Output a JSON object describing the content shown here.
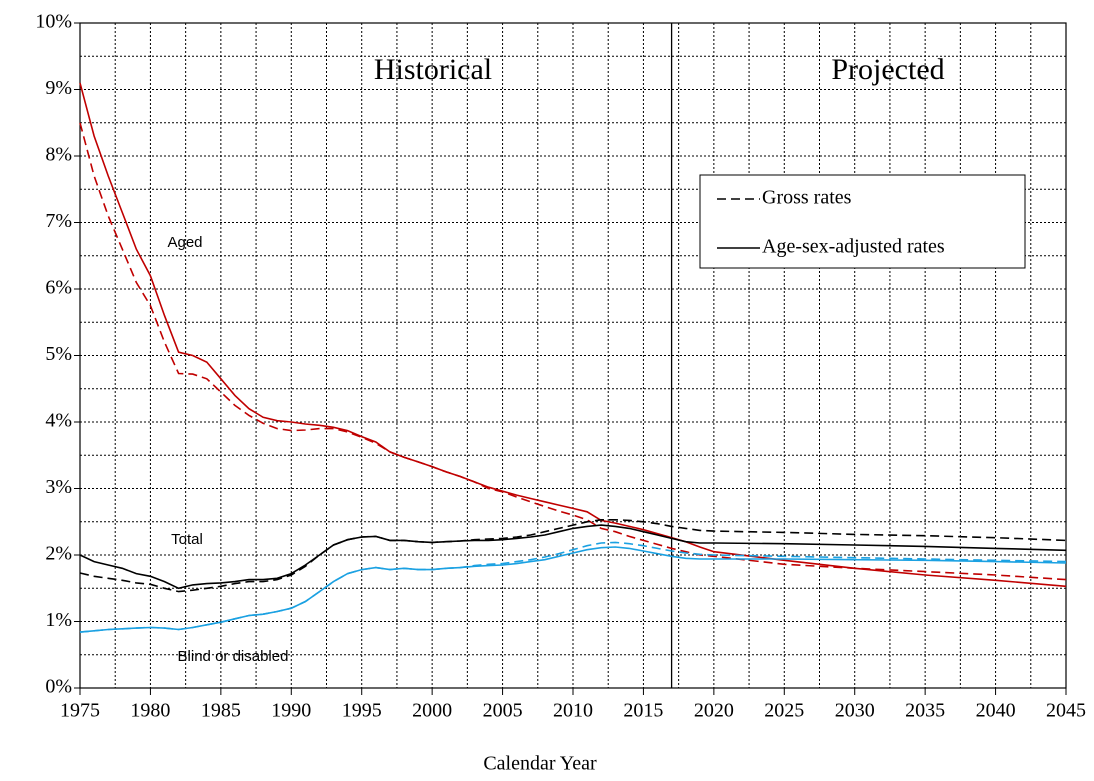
{
  "chart_data": {
    "type": "line",
    "x_label": "Calendar Year",
    "annotations": [
      "Historical",
      "Projected"
    ],
    "divider_x": 2017,
    "x": [
      1975,
      1976,
      1977,
      1978,
      1979,
      1980,
      1981,
      1982,
      1983,
      1984,
      1985,
      1986,
      1987,
      1988,
      1989,
      1990,
      1991,
      1992,
      1993,
      1994,
      1995,
      1996,
      1997,
      1998,
      1999,
      2000,
      2001,
      2002,
      2003,
      2004,
      2005,
      2006,
      2007,
      2008,
      2009,
      2010,
      2011,
      2012,
      2013,
      2014,
      2015,
      2016,
      2017,
      2018,
      2019,
      2020,
      2025,
      2030,
      2035,
      2040,
      2045
    ],
    "series": [
      {
        "name": "Aged",
        "dashed": false,
        "color": "#c00000",
        "values": [
          9.1,
          8.3,
          7.7,
          7.15,
          6.6,
          6.2,
          5.6,
          5.05,
          5.0,
          4.9,
          4.65,
          4.4,
          4.2,
          4.07,
          4.02,
          4.0,
          3.97,
          3.95,
          3.92,
          3.87,
          3.78,
          3.7,
          3.55,
          3.47,
          3.4,
          3.33,
          3.25,
          3.18,
          3.1,
          3.02,
          2.96,
          2.9,
          2.85,
          2.8,
          2.75,
          2.7,
          2.65,
          2.52,
          2.48,
          2.43,
          2.38,
          2.32,
          2.26,
          2.2,
          2.12,
          2.05,
          1.92,
          1.8,
          1.7,
          1.62,
          1.53
        ]
      },
      {
        "name": "Aged",
        "dashed": true,
        "color": "#c00000",
        "values": [
          8.5,
          7.7,
          7.1,
          6.6,
          6.1,
          5.75,
          5.2,
          4.73,
          4.72,
          4.65,
          4.45,
          4.25,
          4.1,
          3.98,
          3.9,
          3.87,
          3.88,
          3.9,
          3.9,
          3.85,
          3.77,
          3.68,
          3.55,
          3.47,
          3.4,
          3.33,
          3.25,
          3.18,
          3.1,
          3.0,
          2.95,
          2.87,
          2.8,
          2.73,
          2.66,
          2.6,
          2.53,
          2.4,
          2.35,
          2.28,
          2.22,
          2.16,
          2.1,
          2.05,
          2.0,
          1.98,
          1.86,
          1.8,
          1.75,
          1.7,
          1.63
        ]
      },
      {
        "name": "Total",
        "dashed": false,
        "color": "#000000",
        "values": [
          2.0,
          1.9,
          1.85,
          1.8,
          1.72,
          1.68,
          1.6,
          1.5,
          1.55,
          1.57,
          1.58,
          1.6,
          1.63,
          1.63,
          1.65,
          1.72,
          1.85,
          2.0,
          2.15,
          2.23,
          2.27,
          2.28,
          2.22,
          2.22,
          2.2,
          2.19,
          2.2,
          2.21,
          2.22,
          2.22,
          2.23,
          2.25,
          2.27,
          2.3,
          2.35,
          2.4,
          2.43,
          2.45,
          2.43,
          2.4,
          2.35,
          2.3,
          2.25,
          2.2,
          2.18,
          2.18,
          2.17,
          2.15,
          2.13,
          2.1,
          2.07
        ]
      },
      {
        "name": "Total",
        "dashed": true,
        "color": "#000000",
        "values": [
          1.73,
          1.68,
          1.65,
          1.62,
          1.58,
          1.56,
          1.5,
          1.45,
          1.47,
          1.5,
          1.53,
          1.57,
          1.6,
          1.6,
          1.63,
          1.7,
          1.83,
          2.0,
          2.15,
          2.23,
          2.27,
          2.28,
          2.22,
          2.22,
          2.2,
          2.19,
          2.2,
          2.21,
          2.23,
          2.24,
          2.25,
          2.27,
          2.3,
          2.35,
          2.4,
          2.45,
          2.5,
          2.53,
          2.53,
          2.52,
          2.5,
          2.47,
          2.43,
          2.4,
          2.37,
          2.36,
          2.34,
          2.31,
          2.29,
          2.26,
          2.22
        ]
      },
      {
        "name": "Blind or disabled",
        "dashed": false,
        "color": "#1ba1e2",
        "values": [
          0.84,
          0.86,
          0.88,
          0.89,
          0.9,
          0.91,
          0.9,
          0.88,
          0.91,
          0.95,
          0.99,
          1.04,
          1.09,
          1.11,
          1.15,
          1.2,
          1.3,
          1.45,
          1.6,
          1.72,
          1.78,
          1.81,
          1.78,
          1.8,
          1.78,
          1.78,
          1.8,
          1.81,
          1.83,
          1.84,
          1.85,
          1.87,
          1.9,
          1.93,
          1.98,
          2.03,
          2.08,
          2.11,
          2.12,
          2.1,
          2.06,
          2.02,
          1.98,
          1.95,
          1.94,
          1.94,
          1.94,
          1.93,
          1.92,
          1.9,
          1.88
        ]
      },
      {
        "name": "Blind or disabled",
        "dashed": true,
        "color": "#1ba1e2",
        "values": [
          0.84,
          0.86,
          0.88,
          0.89,
          0.9,
          0.91,
          0.9,
          0.88,
          0.91,
          0.95,
          0.99,
          1.04,
          1.09,
          1.11,
          1.15,
          1.2,
          1.3,
          1.45,
          1.6,
          1.72,
          1.78,
          1.81,
          1.78,
          1.8,
          1.78,
          1.78,
          1.8,
          1.81,
          1.84,
          1.86,
          1.87,
          1.9,
          1.93,
          1.97,
          2.02,
          2.08,
          2.14,
          2.18,
          2.19,
          2.17,
          2.14,
          2.1,
          2.06,
          2.03,
          2.01,
          2.0,
          1.98,
          1.96,
          1.94,
          1.92,
          1.9
        ]
      }
    ],
    "legend": [
      {
        "label": "Gross rates",
        "dashed": true
      },
      {
        "label": "Age-sex-adjusted rates",
        "dashed": false
      }
    ],
    "xlim": [
      1975,
      2045
    ],
    "xticks": [
      1975,
      1980,
      1985,
      1990,
      1995,
      2000,
      2005,
      2010,
      2015,
      2020,
      2025,
      2030,
      2035,
      2040,
      2045
    ],
    "xgrid": [
      1977.5,
      1980,
      1982.5,
      1985,
      1987.5,
      1990,
      1992.5,
      1995,
      1997.5,
      2000,
      2002.5,
      2005,
      2007.5,
      2010,
      2012.5,
      2015,
      2017.5,
      2020,
      2022.5,
      2025,
      2027.5,
      2030,
      2032.5,
      2035,
      2037.5,
      2040,
      2042.5
    ],
    "ylim": [
      0,
      10
    ],
    "yticks": [
      {
        "value": 0,
        "label": "0%"
      },
      {
        "value": 1,
        "label": "1%"
      },
      {
        "value": 2,
        "label": "2%"
      },
      {
        "value": 3,
        "label": "3%"
      },
      {
        "value": 4,
        "label": "4%"
      },
      {
        "value": 5,
        "label": "5%"
      },
      {
        "value": 6,
        "label": "6%"
      },
      {
        "value": 7,
        "label": "7%"
      },
      {
        "value": 8,
        "label": "8%"
      },
      {
        "value": 9,
        "label": "9%"
      },
      {
        "value": 10,
        "label": "10%"
      }
    ],
    "ygrid": [
      0.5,
      1,
      1.5,
      2,
      2.5,
      3,
      3.5,
      4,
      4.5,
      5,
      5.5,
      6,
      6.5,
      7,
      7.5,
      8,
      8.5,
      9,
      9.5,
      10
    ]
  }
}
